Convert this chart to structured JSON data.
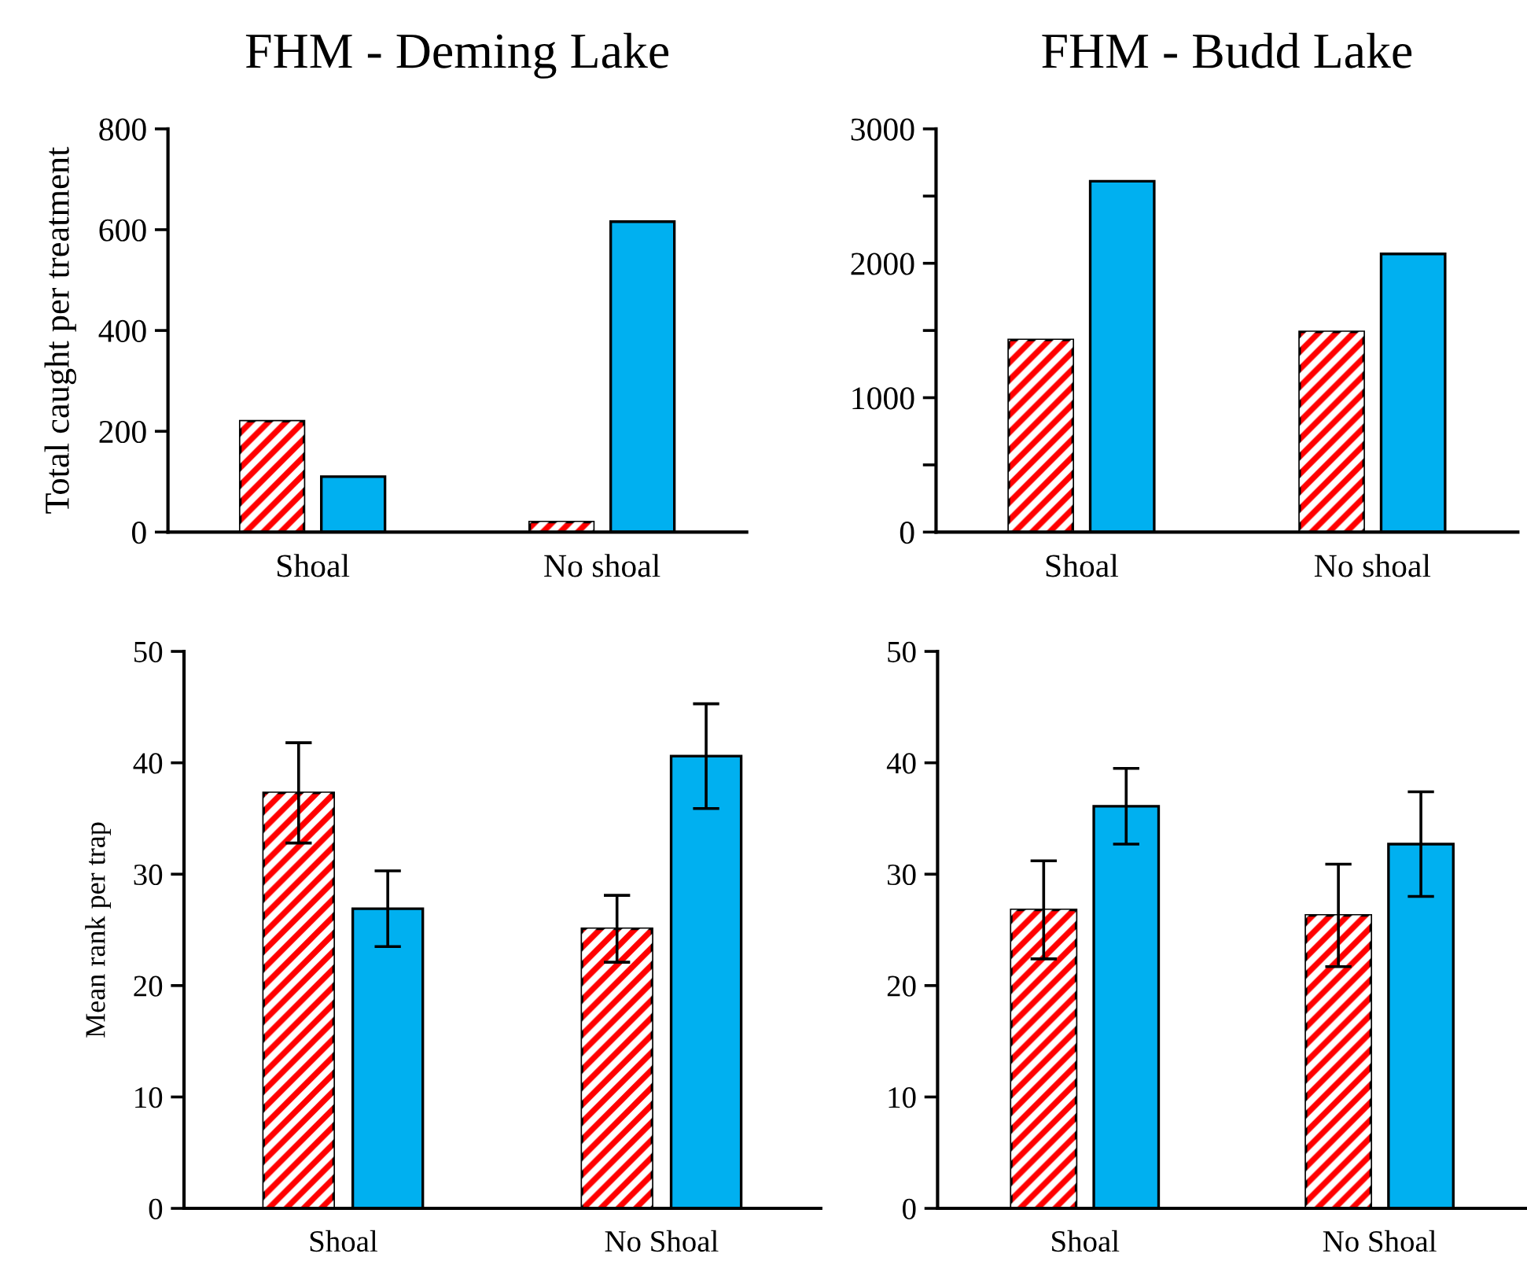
{
  "chart_data": [
    {
      "type": "bar",
      "title": "FHM - Deming Lake",
      "ylabel": "Total caught per treatment",
      "categories": [
        "Shoal",
        "No shoal"
      ],
      "ylim": [
        0,
        800
      ],
      "yticks": [
        0,
        200,
        400,
        600,
        800
      ],
      "grid": false,
      "series": [
        {
          "color": "#ff0000",
          "values": [
            220,
            20
          ]
        },
        {
          "color": "#00b0f0",
          "values": [
            110,
            616
          ]
        }
      ]
    },
    {
      "type": "bar",
      "title": "FHM - Budd Lake",
      "categories": [
        "Shoal",
        "No shoal"
      ],
      "ylim": [
        0,
        3000
      ],
      "yticks": [
        0,
        {
          "value": 500,
          "label": null
        },
        1000,
        {
          "value": 1500,
          "label": null
        },
        2000,
        {
          "value": 2500,
          "label": null
        },
        3000
      ],
      "grid": false,
      "series": [
        {
          "color": "#ff0000",
          "values": [
            1430,
            1490
          ]
        },
        {
          "color": "#00b0f0",
          "values": [
            2610,
            2070
          ]
        }
      ]
    },
    {
      "type": "bar",
      "ylabel": "Mean rank per trap",
      "categories": [
        "Shoal",
        "No Shoal"
      ],
      "ylim": [
        0,
        50
      ],
      "yticks": [
        0,
        10,
        20,
        30,
        40,
        50
      ],
      "grid": false,
      "series": [
        {
          "color": "#ff0000",
          "values": [
            37.3,
            25.1
          ],
          "errors": [
            4.5,
            3.0
          ]
        },
        {
          "color": "#00b0f0",
          "values": [
            26.9,
            40.6
          ],
          "errors": [
            3.4,
            4.7
          ]
        }
      ]
    },
    {
      "type": "bar",
      "categories": [
        "Shoal",
        "No Shoal"
      ],
      "ylim": [
        0,
        50
      ],
      "yticks": [
        0,
        10,
        20,
        30,
        40,
        50
      ],
      "grid": false,
      "series": [
        {
          "color": "#ff0000",
          "values": [
            26.8,
            26.3
          ],
          "errors": [
            4.4,
            4.6
          ]
        },
        {
          "color": "#00b0f0",
          "values": [
            36.1,
            32.7
          ],
          "errors": [
            3.4,
            4.7
          ]
        }
      ]
    }
  ]
}
